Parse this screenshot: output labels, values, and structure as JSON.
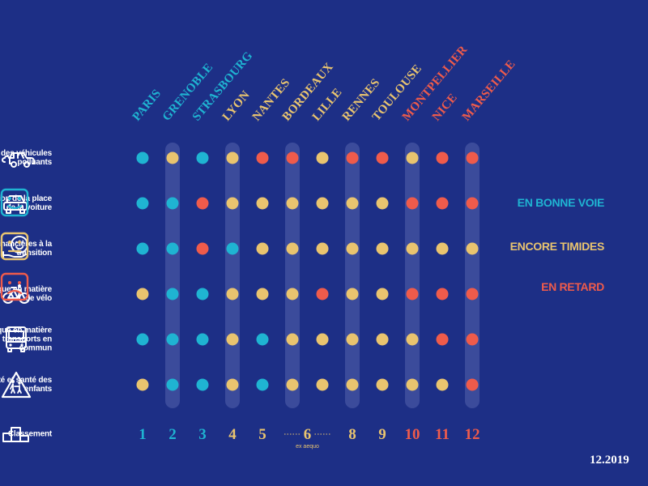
{
  "colors": {
    "background": "#1d2f86",
    "good": "#1fb4d2",
    "timid": "#e9c46f",
    "late": "#ef5b4b",
    "band": "#3b4b9b",
    "label": "#ffffff"
  },
  "chart_data": {
    "type": "dot-matrix",
    "title": "",
    "cities": [
      "PARIS",
      "GRENOBLE",
      "STRASBOURG",
      "LYON",
      "NANTES",
      "BORDEAUX",
      "LILLE",
      "RENNES",
      "TOULOUSE",
      "MONTPELLIER",
      "NICE",
      "MARSEILLE"
    ],
    "criteria": [
      {
        "label": "Sortie des véhicules polluants",
        "icon": "polluting-cars-icon",
        "ratings": [
          "good",
          "timid",
          "good",
          "timid",
          "late",
          "late",
          "timid",
          "late",
          "late",
          "timid",
          "late",
          "late"
        ]
      },
      {
        "label": "Réduction de la place de la voiture",
        "icon": "car-icon",
        "ratings": [
          "good",
          "good",
          "late",
          "timid",
          "timid",
          "timid",
          "timid",
          "timid",
          "timid",
          "late",
          "late",
          "late"
        ]
      },
      {
        "label": "Aides financières à la transition",
        "icon": "financial-aid-icon",
        "ratings": [
          "good",
          "good",
          "late",
          "good",
          "timid",
          "timid",
          "timid",
          "timid",
          "timid",
          "timid",
          "timid",
          "timid"
        ]
      },
      {
        "label": "Dynamique en matière de vélo",
        "icon": "bicycle-icon",
        "ratings": [
          "timid",
          "good",
          "good",
          "timid",
          "timid",
          "timid",
          "late",
          "timid",
          "timid",
          "late",
          "late",
          "late"
        ]
      },
      {
        "label": "Dynamique en matière de transports en commun",
        "icon": "bus-icon",
        "ratings": [
          "good",
          "good",
          "good",
          "timid",
          "good",
          "timid",
          "timid",
          "timid",
          "timid",
          "timid",
          "late",
          "late"
        ]
      },
      {
        "label": "Mobilité et santé des enfants",
        "icon": "children-crossing-icon",
        "ratings": [
          "timid",
          "good",
          "good",
          "timid",
          "good",
          "timid",
          "timid",
          "timid",
          "timid",
          "timid",
          "timid",
          "late"
        ]
      }
    ],
    "ranking": {
      "label": "Classement",
      "icon": "podium-icon",
      "ranks": [
        "1",
        "2",
        "3",
        "4",
        "5",
        "6",
        "6",
        "8",
        "9",
        "10",
        "11",
        "12"
      ],
      "rank_colors": [
        "good",
        "good",
        "good",
        "timid",
        "timid",
        "timid",
        "timid",
        "timid",
        "timid",
        "late",
        "late",
        "late"
      ],
      "tie_note": "ex aequo"
    },
    "highlighted_columns": [
      1,
      3,
      5,
      7,
      9,
      11
    ],
    "legend": [
      {
        "key": "good",
        "label": "EN BONNE VOIE",
        "icon": "smiling-face-icon"
      },
      {
        "key": "timid",
        "label": "ENCORE TIMIDES",
        "icon": "neutral-face-icon"
      },
      {
        "key": "late",
        "label": "EN RETARD",
        "icon": "frowning-face-icon"
      }
    ],
    "date": "12.2019"
  }
}
